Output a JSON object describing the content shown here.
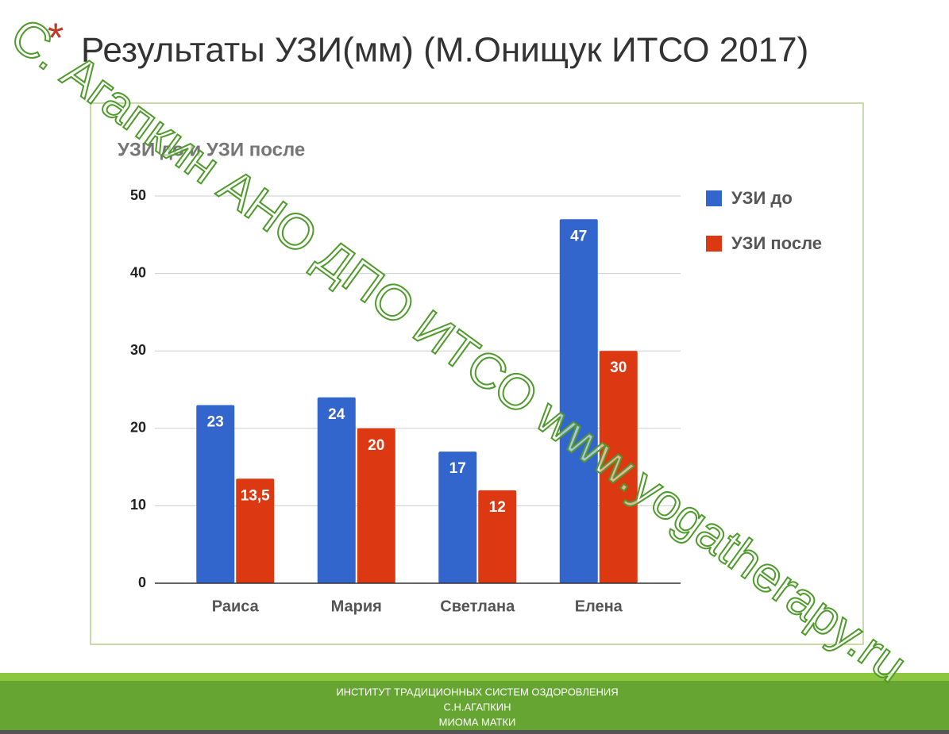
{
  "slide": {
    "bullet": "*",
    "title": "Результаты УЗИ(мм) (М.Онищук ИТСО 2017)",
    "watermark": "С. Агапкин АНО ДПО ИТСО www.yogatherapy.ru",
    "footer": [
      "ИНСТИТУТ  ТРАДИЦИОННЫХ СИСТЕМ ОЗДОРОВЛЕНИЯ",
      "С.Н.АГАПКИН",
      "МИОМА МАТКИ"
    ]
  },
  "chart_data": {
    "type": "bar",
    "title": "УЗИ до и УЗИ после",
    "categories": [
      "Раиса",
      "Мария",
      "Светлана",
      "Елена"
    ],
    "series": [
      {
        "name": "УЗИ до",
        "color": "#3366cc",
        "values": [
          23,
          24,
          17,
          47
        ]
      },
      {
        "name": "УЗИ после",
        "color": "#dc3912",
        "values": [
          13.5,
          20,
          12,
          30
        ],
        "value_labels": [
          "13,5",
          "20",
          "12",
          "30"
        ]
      }
    ],
    "ylim": [
      0,
      50
    ],
    "yticks": [
      0,
      10,
      20,
      30,
      40,
      50
    ],
    "grid": true,
    "legend": "right"
  }
}
